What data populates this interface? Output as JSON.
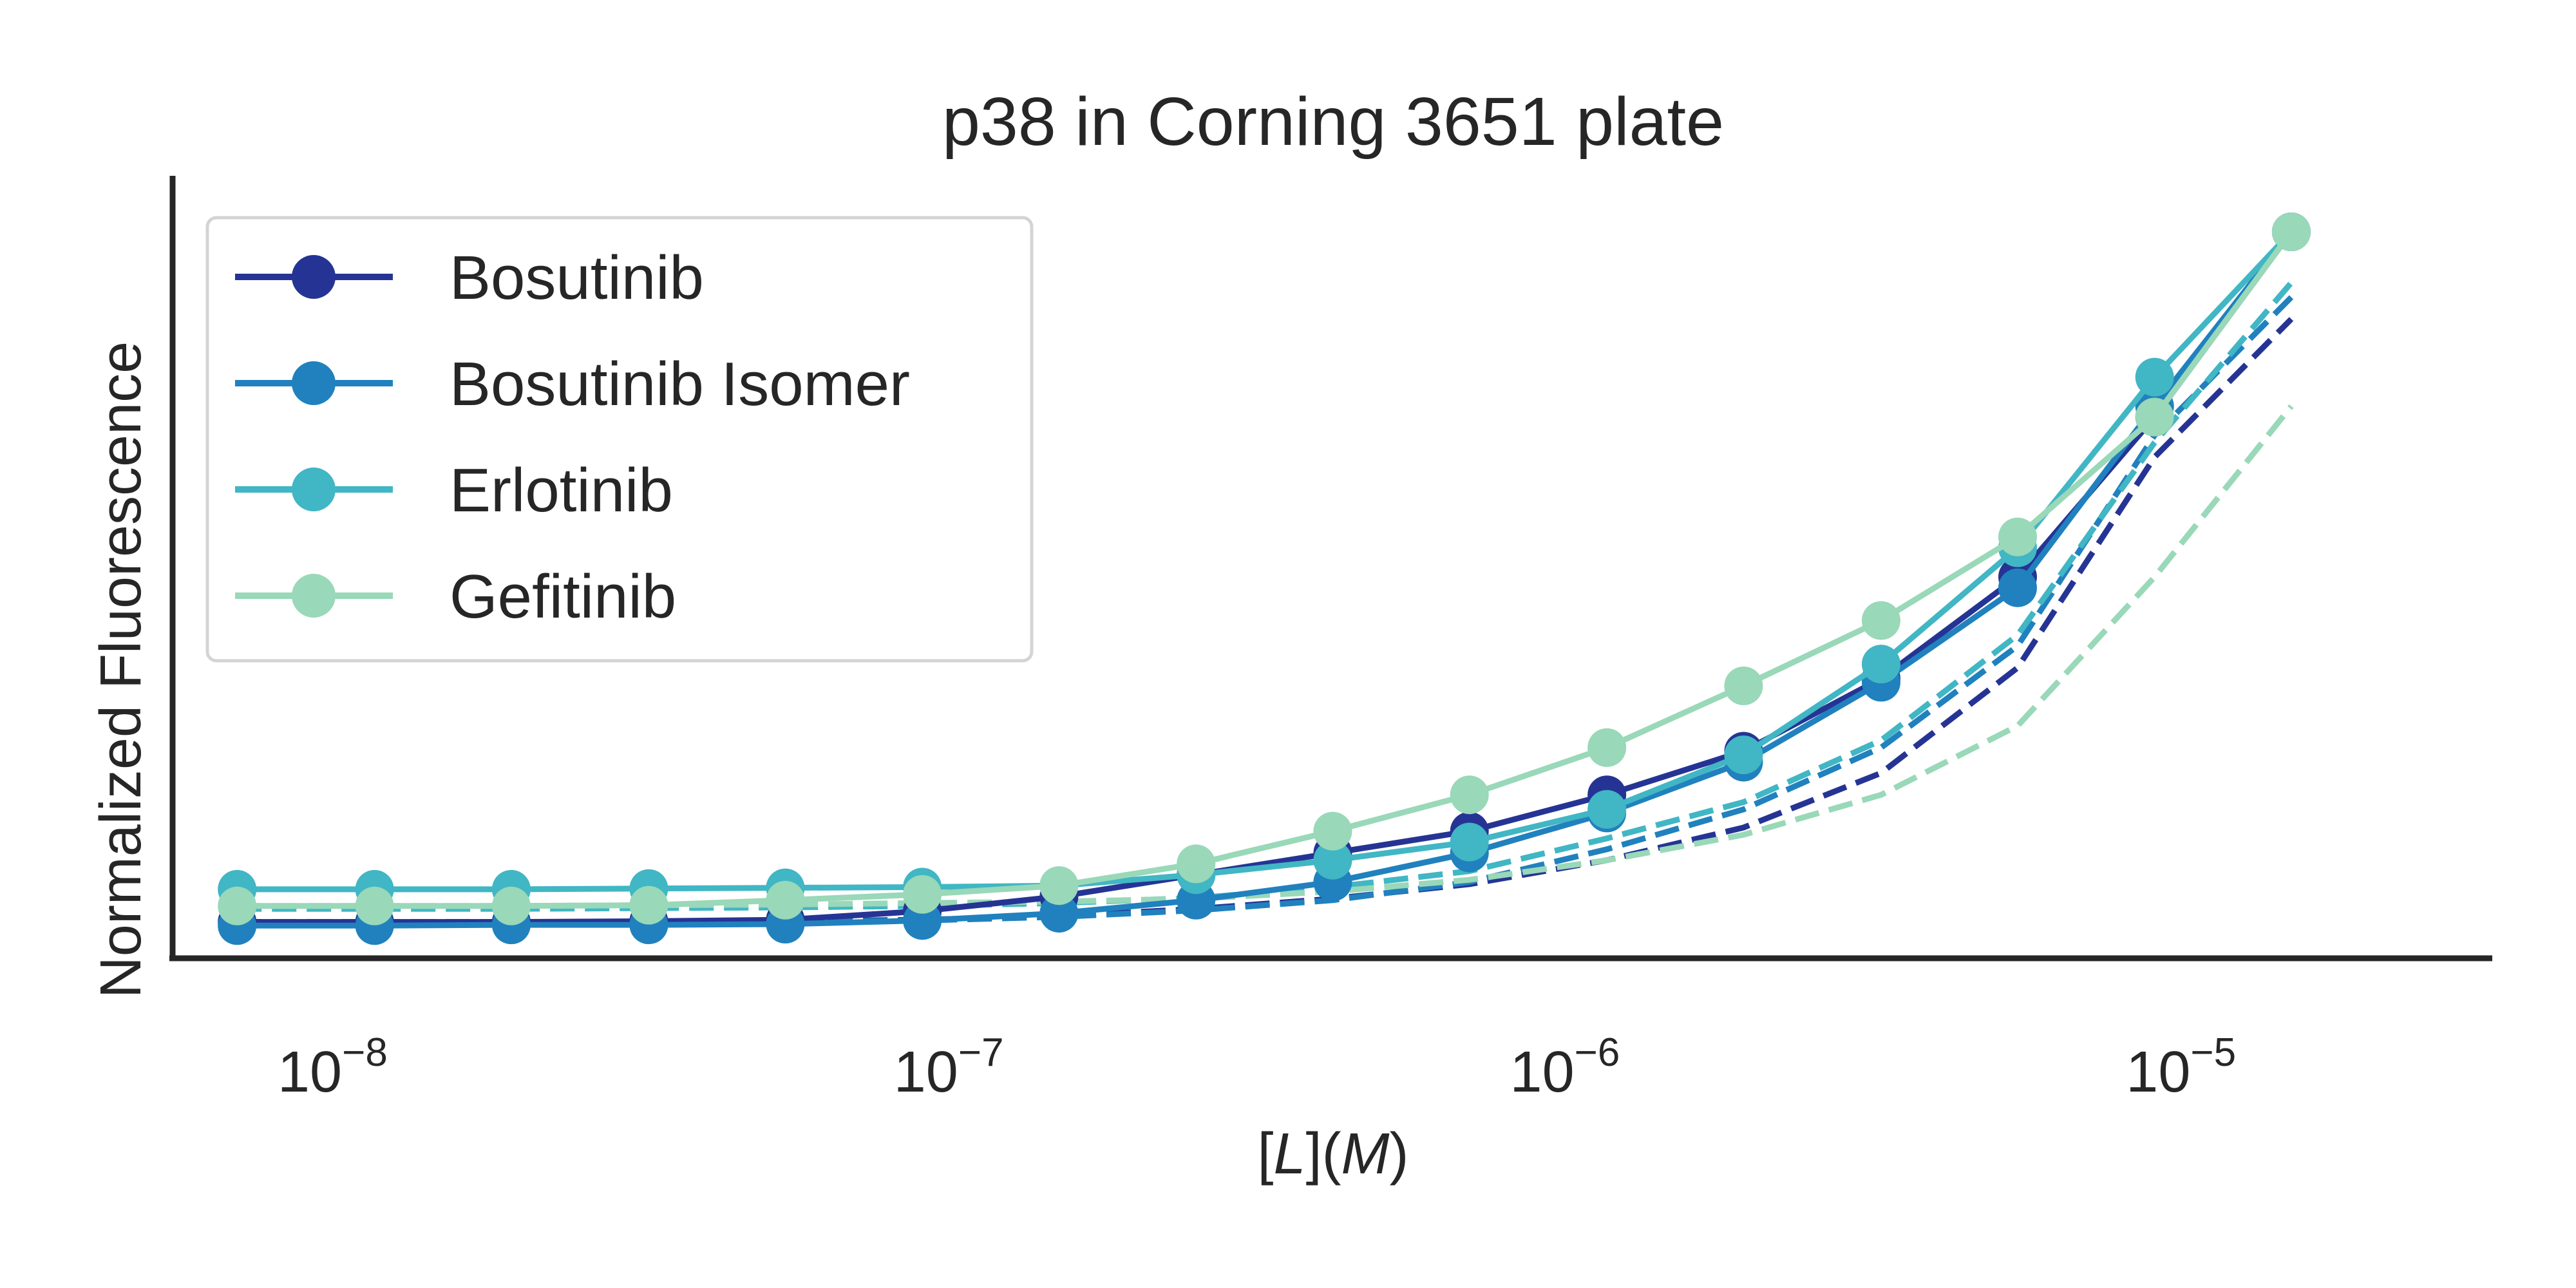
{
  "chart_data": {
    "type": "line",
    "title": "p38 in Corning 3651 plate",
    "xlabel_parts": [
      "[",
      "L",
      "](",
      "M",
      ")"
    ],
    "ylabel": "Normalized Fluorescence",
    "x_scale": "log",
    "xlim": [
      5.5e-09,
      3.2e-05
    ],
    "ylim": [
      0,
      1
    ],
    "x_ticks": [
      {
        "base": "10",
        "exp": "−8",
        "value": 1e-08
      },
      {
        "base": "10",
        "exp": "−7",
        "value": 1e-07
      },
      {
        "base": "10",
        "exp": "−6",
        "value": 1e-06
      },
      {
        "base": "10",
        "exp": "−5",
        "value": 1e-05
      }
    ],
    "grid": false,
    "legend_position": "upper-left",
    "x": [
      7e-09,
      1.17e-08,
      1.95e-08,
      3.26e-08,
      5.43e-08,
      9.06e-08,
      1.51e-07,
      2.52e-07,
      4.2e-07,
      7e-07,
      1.17e-06,
      1.95e-06,
      3.26e-06,
      5.43e-06,
      9.06e-06,
      1.51e-05
    ],
    "series": [
      {
        "name": "Bosutinib",
        "color": "#253494",
        "values": [
          0.05,
          0.05,
          0.05,
          0.051,
          0.053,
          0.065,
          0.085,
          0.115,
          0.145,
          0.175,
          0.225,
          0.285,
          0.385,
          0.525,
          0.745,
          1.0
        ],
        "dashed": [
          0.05,
          0.05,
          0.05,
          0.05,
          0.051,
          0.053,
          0.058,
          0.068,
          0.082,
          0.102,
          0.135,
          0.18,
          0.255,
          0.4,
          0.69,
          0.88
        ]
      },
      {
        "name": "Bosutinib Isomer",
        "color": "#2081be",
        "values": [
          0.045,
          0.045,
          0.046,
          0.046,
          0.047,
          0.052,
          0.062,
          0.08,
          0.105,
          0.145,
          0.2,
          0.27,
          0.38,
          0.51,
          0.76,
          1.0
        ],
        "dashed": [
          0.048,
          0.048,
          0.048,
          0.049,
          0.05,
          0.052,
          0.057,
          0.066,
          0.08,
          0.105,
          0.15,
          0.205,
          0.29,
          0.43,
          0.72,
          0.91
        ]
      },
      {
        "name": "Erlotinib",
        "color": "#41b6c4",
        "values": [
          0.095,
          0.095,
          0.095,
          0.096,
          0.097,
          0.098,
          0.1,
          0.115,
          0.135,
          0.16,
          0.205,
          0.28,
          0.405,
          0.565,
          0.8,
          1.0
        ],
        "dashed": [
          0.068,
          0.068,
          0.068,
          0.069,
          0.07,
          0.072,
          0.076,
          0.083,
          0.098,
          0.12,
          0.165,
          0.215,
          0.3,
          0.445,
          0.71,
          0.93
        ]
      },
      {
        "name": "Gefitinib",
        "color": "#99d8b8",
        "values": [
          0.072,
          0.072,
          0.072,
          0.073,
          0.08,
          0.088,
          0.1,
          0.13,
          0.175,
          0.225,
          0.29,
          0.375,
          0.465,
          0.58,
          0.745,
          1.0
        ],
        "dashed": [
          0.072,
          0.072,
          0.072,
          0.073,
          0.074,
          0.076,
          0.078,
          0.082,
          0.092,
          0.108,
          0.135,
          0.17,
          0.225,
          0.32,
          0.525,
          0.76
        ]
      }
    ]
  }
}
